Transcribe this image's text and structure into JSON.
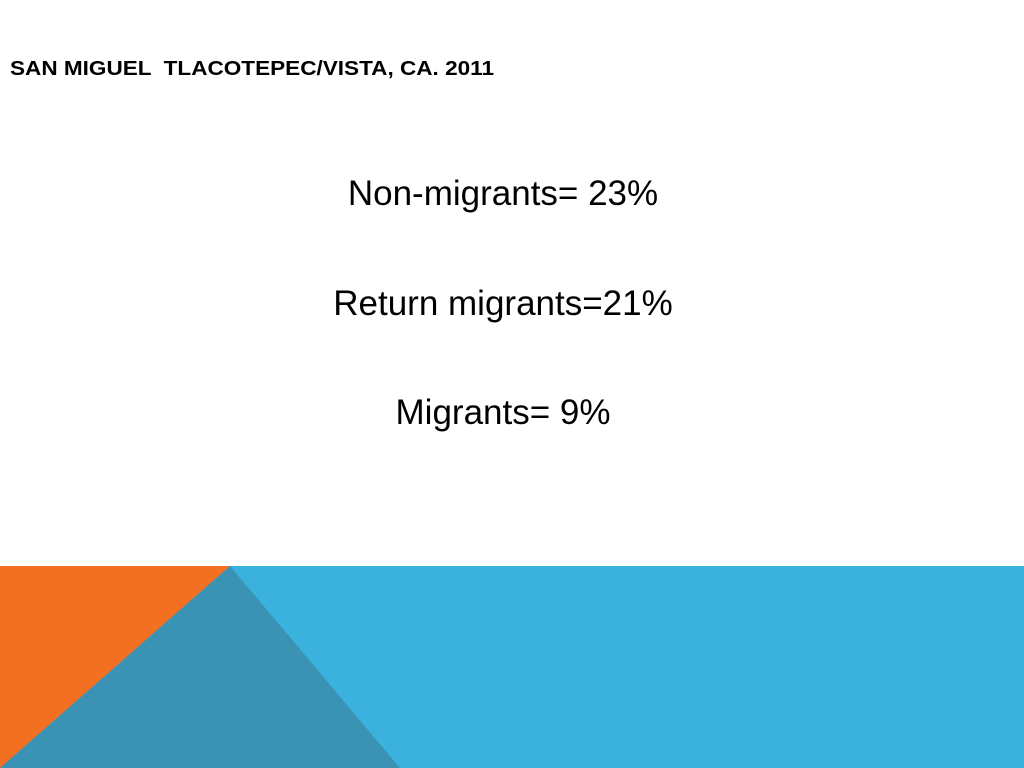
{
  "title": "SAN MIGUEL  TLACOTEPEC/VISTA, CA. 2011",
  "body": {
    "lines": [
      "Non-migrants= 23%",
      "Return migrants=21%",
      "Migrants= 9%"
    ]
  }
}
